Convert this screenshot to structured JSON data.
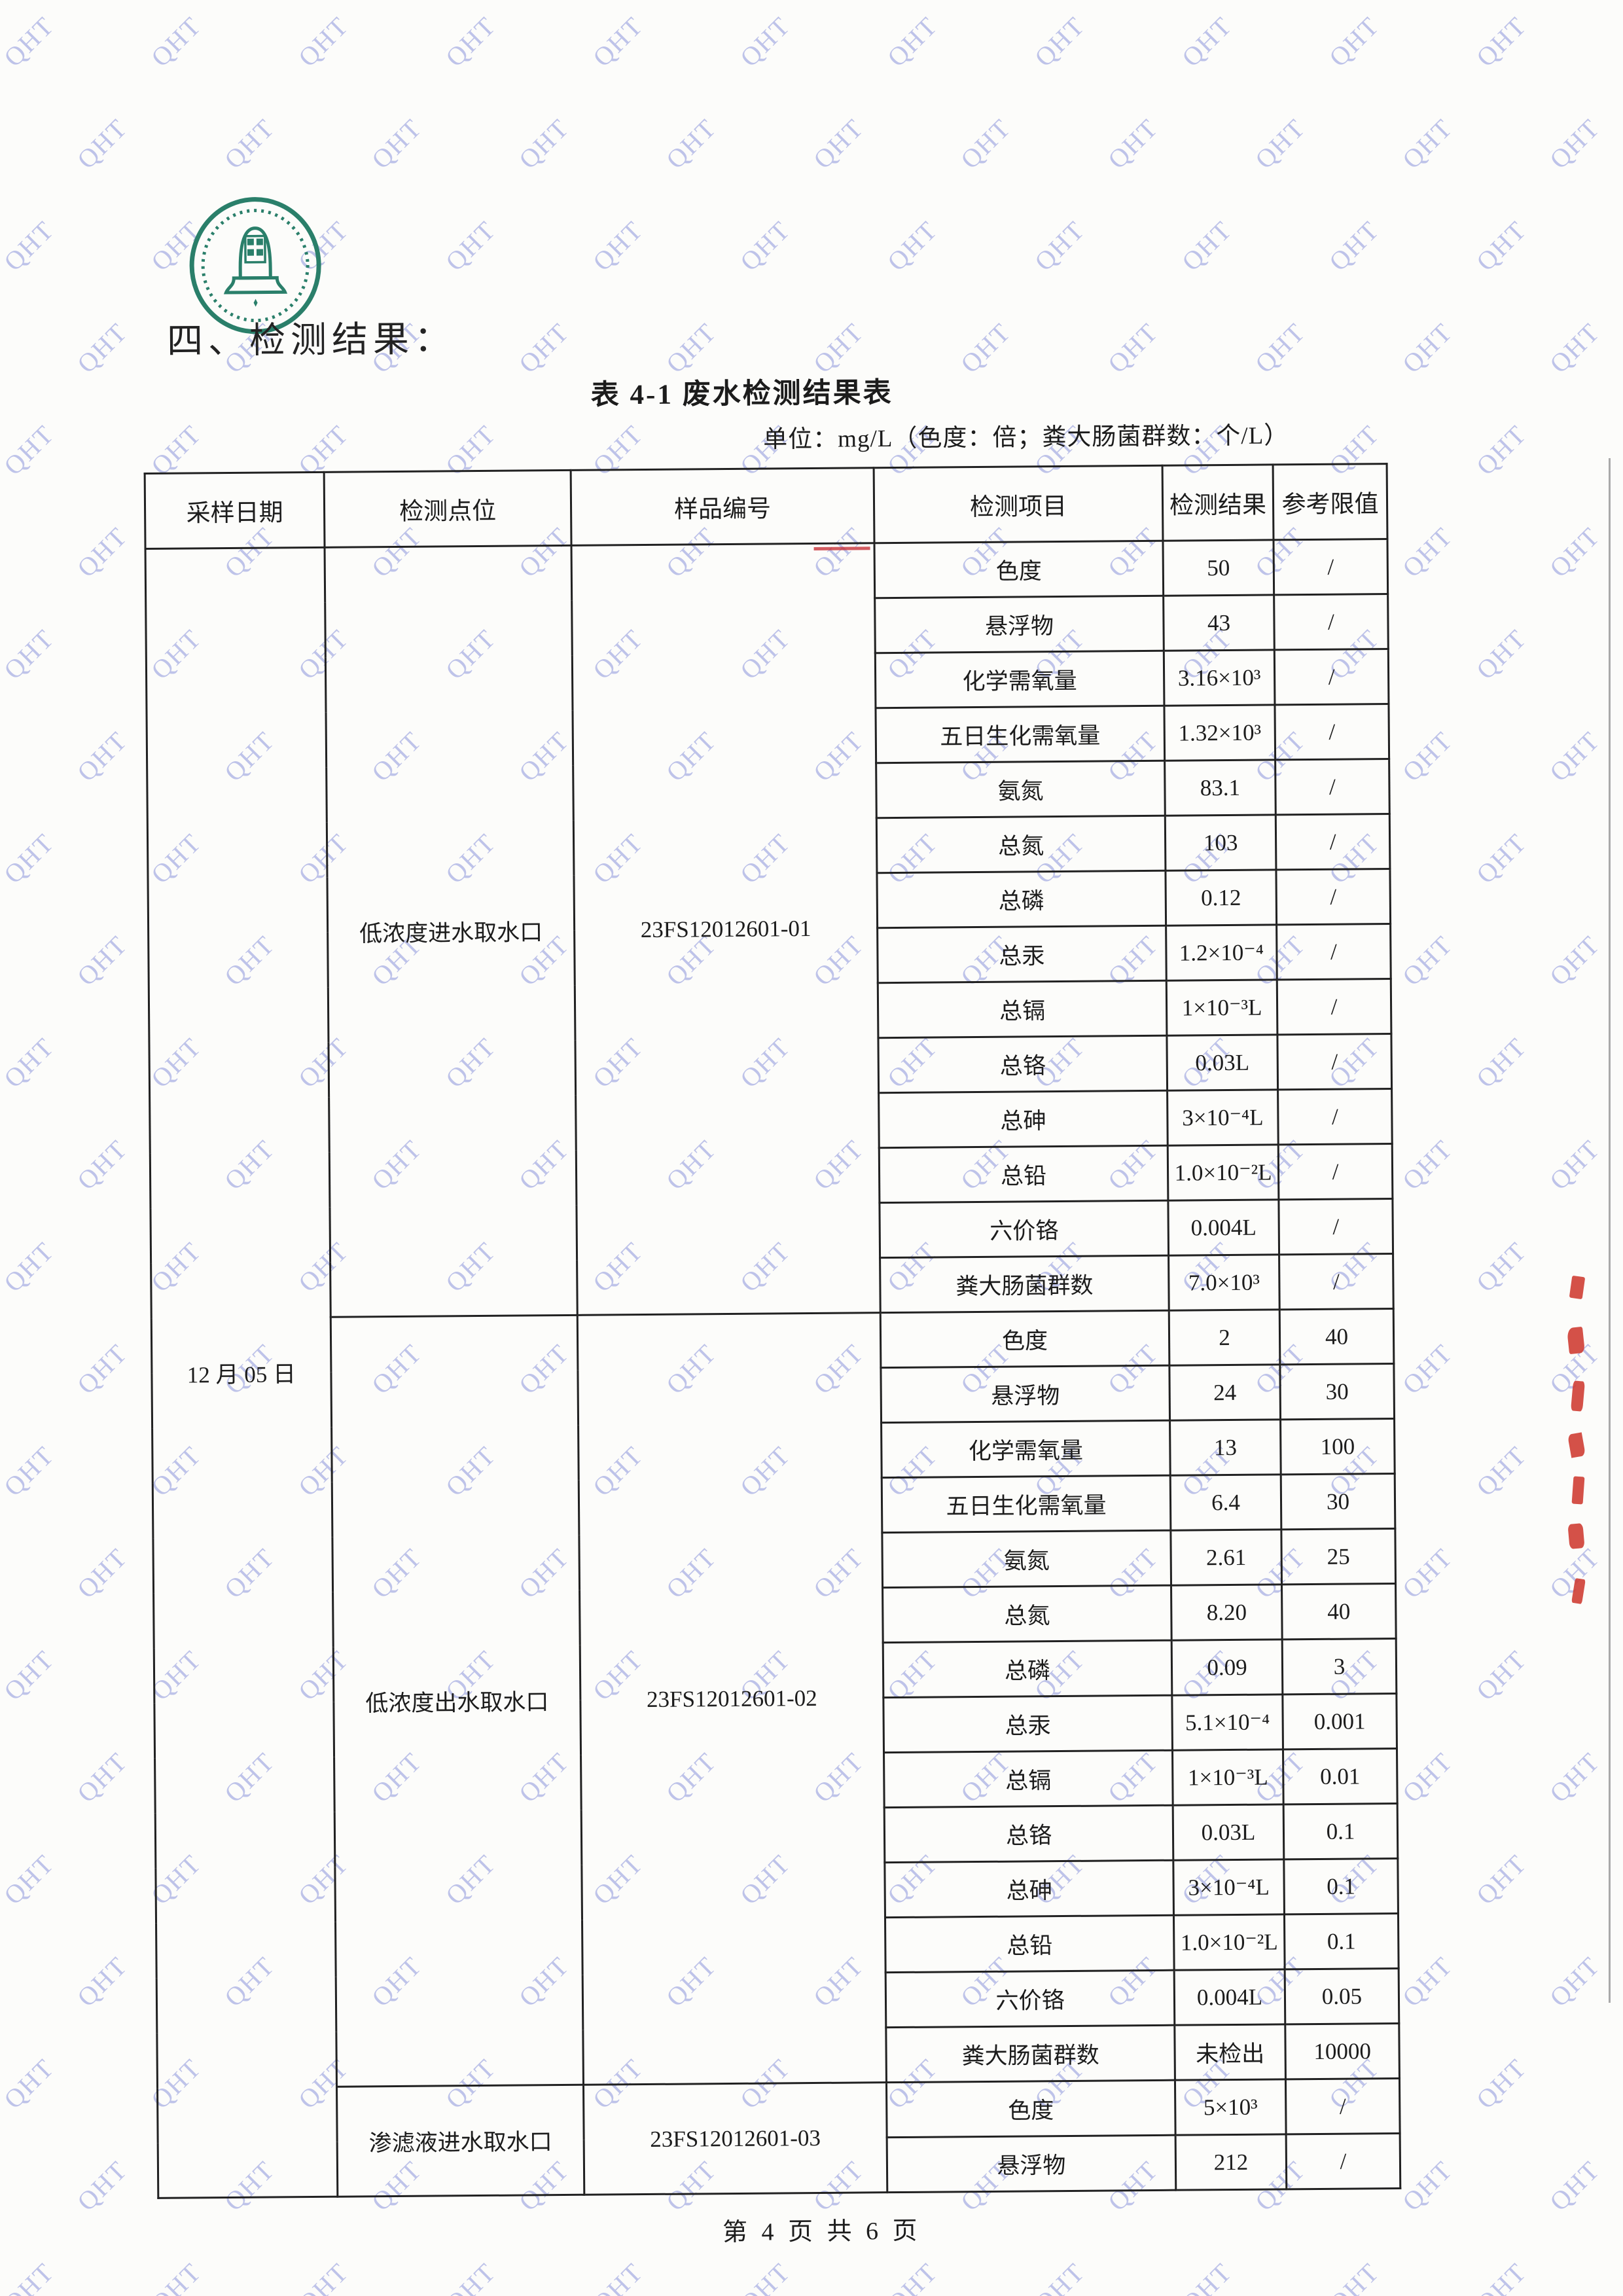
{
  "watermark": {
    "text": "QHT"
  },
  "page": {
    "section_heading": "四、检测结果：",
    "table_title": "表 4-1  废水检测结果表",
    "unit_note": "单位：mg/L（色度：倍；粪大肠菌群数：个/L）",
    "footer": "第 4 页 共 6 页"
  },
  "colors": {
    "watermark": "#808ad8",
    "seal_green": "#2a7f6a",
    "stamp_red": "#cf3a30",
    "scan_line_grey": "#8f8f8f"
  },
  "table": {
    "headers": [
      "采样日期",
      "检测点位",
      "样品编号",
      "检测项目",
      "检测结果",
      "参考限值"
    ],
    "date": "12 月 05 日",
    "groups": [
      {
        "point": "低浓度进水取水口",
        "sample_id": "23FS12012601-01",
        "rows": [
          [
            "色度",
            "50",
            "/"
          ],
          [
            "悬浮物",
            "43",
            "/"
          ],
          [
            "化学需氧量",
            "3.16×10³",
            "/"
          ],
          [
            "五日生化需氧量",
            "1.32×10³",
            "/"
          ],
          [
            "氨氮",
            "83.1",
            "/"
          ],
          [
            "总氮",
            "103",
            "/"
          ],
          [
            "总磷",
            "0.12",
            "/"
          ],
          [
            "总汞",
            "1.2×10⁻⁴",
            "/"
          ],
          [
            "总镉",
            "1×10⁻³L",
            "/"
          ],
          [
            "总铬",
            "0.03L",
            "/"
          ],
          [
            "总砷",
            "3×10⁻⁴L",
            "/"
          ],
          [
            "总铅",
            "1.0×10⁻²L",
            "/"
          ],
          [
            "六价铬",
            "0.004L",
            "/"
          ],
          [
            "粪大肠菌群数",
            "7.0×10³",
            "/"
          ]
        ]
      },
      {
        "point": "低浓度出水取水口",
        "sample_id": "23FS12012601-02",
        "rows": [
          [
            "色度",
            "2",
            "40"
          ],
          [
            "悬浮物",
            "24",
            "30"
          ],
          [
            "化学需氧量",
            "13",
            "100"
          ],
          [
            "五日生化需氧量",
            "6.4",
            "30"
          ],
          [
            "氨氮",
            "2.61",
            "25"
          ],
          [
            "总氮",
            "8.20",
            "40"
          ],
          [
            "总磷",
            "0.09",
            "3"
          ],
          [
            "总汞",
            "5.1×10⁻⁴",
            "0.001"
          ],
          [
            "总镉",
            "1×10⁻³L",
            "0.01"
          ],
          [
            "总铬",
            "0.03L",
            "0.1"
          ],
          [
            "总砷",
            "3×10⁻⁴L",
            "0.1"
          ],
          [
            "总铅",
            "1.0×10⁻²L",
            "0.1"
          ],
          [
            "六价铬",
            "0.004L",
            "0.05"
          ],
          [
            "粪大肠菌群数",
            "未检出",
            "10000"
          ]
        ]
      },
      {
        "point": "渗滤液进水取水口",
        "sample_id": "23FS12012601-03",
        "rows": [
          [
            "色度",
            "5×10³",
            "/"
          ],
          [
            "悬浮物",
            "212",
            "/"
          ]
        ]
      }
    ]
  }
}
